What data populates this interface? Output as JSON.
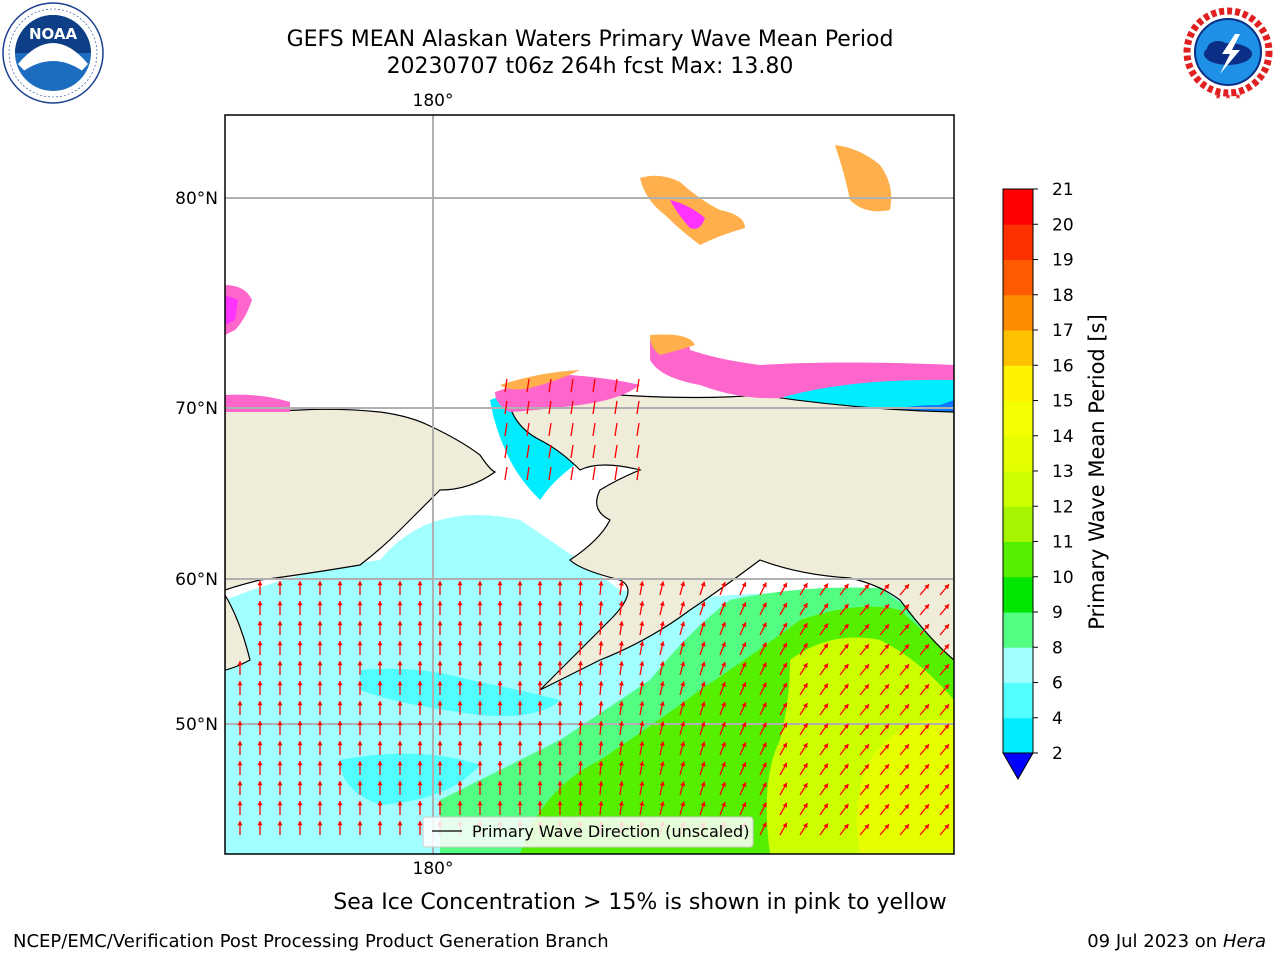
{
  "header": {
    "title_line1": "GEFS MEAN Alaskan Waters Primary Wave Mean Period",
    "title_line2": "20230707 t06z 264h fcst   Max: 13.80"
  },
  "logos": {
    "left": {
      "name": "NOAA",
      "ring_text": "NATIONAL OCEANIC AND ATMOSPHERIC ADMINISTRATION · U.S. DEPARTMENT OF COMMERCE"
    },
    "right": {
      "name": "NATIONAL WEATHER SERVICE"
    }
  },
  "map": {
    "lon_labels": [
      "180°",
      "180°"
    ],
    "lat_labels": [
      "80°N",
      "70°N",
      "60°N",
      "50°N"
    ],
    "legend": "Primary Wave Direction (unscaled)",
    "colors": {
      "land": "#efecda",
      "gridline": "#b0b0b0",
      "arrow": "#ff0000",
      "ice_pink": "#ff66cc",
      "ice_orange": "#ffb04d",
      "ice_magenta": "#ff33ff"
    }
  },
  "colorbar": {
    "label": "Primary Wave Mean Period [s]",
    "ticks": [
      "2",
      "4",
      "6",
      "8",
      "9",
      "10",
      "11",
      "12",
      "13",
      "14",
      "15",
      "16",
      "17",
      "18",
      "19",
      "20",
      "21"
    ],
    "colors": [
      "#0a79ff",
      "#00ecff",
      "#52ffff",
      "#a2ffff",
      "#52ff82",
      "#00e600",
      "#54f000",
      "#a6f400",
      "#ccff00",
      "#e6ff00",
      "#f4ff00",
      "#fff200",
      "#ffc000",
      "#ff8c00",
      "#ff5a00",
      "#ff3000",
      "#ff0000"
    ],
    "under_color": "#0000ff"
  },
  "notes": {
    "ice_note": "Sea Ice Concentration > 15% is shown in pink to yellow"
  },
  "footer": {
    "left": "NCEP/EMC/Verification Post Processing Product Generation Branch",
    "date": "09 Jul 2023 on",
    "host": "Hera"
  }
}
